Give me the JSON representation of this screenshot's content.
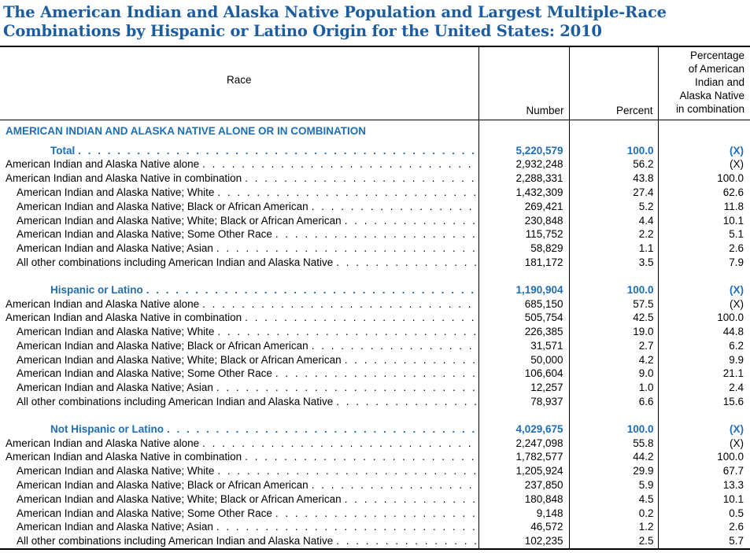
{
  "colors": {
    "title-blue": "#1C5C9F",
    "accent-blue": "#1F6EB3",
    "line-color": "#000000"
  },
  "title": {
    "line1": "The American Indian and Alaska Native Population and Largest Multiple-Race",
    "line2": "Combinations by Hispanic or Latino Origin for the United States: 2010"
  },
  "table": {
    "header": {
      "race": "Race",
      "number": "Number",
      "percent": "Percent",
      "combo_lines": [
        "Percentage",
        "of American",
        "Indian and",
        "Alaska Native",
        "in combination"
      ]
    },
    "group_header": "AMERICAN INDIAN AND ALASKA NATIVE ALONE OR IN COMBINATION",
    "sections": [
      {
        "label": "Total",
        "number": "5,220,579",
        "percent": "100.0",
        "combo": "(X)",
        "rows": [
          {
            "label": "American Indian and Alaska Native alone",
            "number": "2,932,248",
            "percent": "56.2",
            "combo": "(X)"
          },
          {
            "label": "American Indian and Alaska Native in combination",
            "number": "2,288,331",
            "percent": "43.8",
            "combo": "100.0"
          },
          {
            "label": "American Indian and Alaska Native; White",
            "number": "1,432,309",
            "percent": "27.4",
            "combo": "62.6"
          },
          {
            "label": "American Indian and Alaska Native; Black or African American",
            "number": "269,421",
            "percent": "5.2",
            "combo": "11.8"
          },
          {
            "label": "American Indian and Alaska Native; White; Black or African American",
            "number": "230,848",
            "percent": "4.4",
            "combo": "10.1"
          },
          {
            "label": "American Indian and Alaska Native; Some Other Race",
            "number": "115,752",
            "percent": "2.2",
            "combo": "5.1"
          },
          {
            "label": "American Indian and Alaska Native; Asian",
            "number": "58,829",
            "percent": "1.1",
            "combo": "2.6"
          },
          {
            "label": "All other combinations including American Indian and Alaska Native",
            "number": "181,172",
            "percent": "3.5",
            "combo": "7.9"
          }
        ]
      },
      {
        "label": "Hispanic or Latino",
        "number": "1,190,904",
        "percent": "100.0",
        "combo": "(X)",
        "rows": [
          {
            "label": "American Indian and Alaska Native alone",
            "number": "685,150",
            "percent": "57.5",
            "combo": "(X)"
          },
          {
            "label": "American Indian and Alaska Native in combination",
            "number": "505,754",
            "percent": "42.5",
            "combo": "100.0"
          },
          {
            "label": "American Indian and Alaska Native; White",
            "number": "226,385",
            "percent": "19.0",
            "combo": "44.8"
          },
          {
            "label": "American Indian and Alaska Native; Black or African American",
            "number": "31,571",
            "percent": "2.7",
            "combo": "6.2"
          },
          {
            "label": "American Indian and Alaska Native; White; Black or African American",
            "number": "50,000",
            "percent": "4.2",
            "combo": "9.9"
          },
          {
            "label": "American Indian and Alaska Native; Some Other Race",
            "number": "106,604",
            "percent": "9.0",
            "combo": "21.1"
          },
          {
            "label": "American Indian and Alaska Native; Asian",
            "number": "12,257",
            "percent": "1.0",
            "combo": "2.4"
          },
          {
            "label": "All other combinations including American Indian and Alaska Native",
            "number": "78,937",
            "percent": "6.6",
            "combo": "15.6"
          }
        ]
      },
      {
        "label": "Not Hispanic or Latino",
        "number": "4,029,675",
        "percent": "100.0",
        "combo": "(X)",
        "rows": [
          {
            "label": "American Indian and Alaska Native alone",
            "number": "2,247,098",
            "percent": "55.8",
            "combo": "(X)"
          },
          {
            "label": "American Indian and Alaska Native in combination",
            "number": "1,782,577",
            "percent": "44.2",
            "combo": "100.0"
          },
          {
            "label": "American Indian and Alaska Native; White",
            "number": "1,205,924",
            "percent": "29.9",
            "combo": "67.7"
          },
          {
            "label": "American Indian and Alaska Native; Black or African American",
            "number": "237,850",
            "percent": "5.9",
            "combo": "13.3"
          },
          {
            "label": "American Indian and Alaska Native; White; Black or African American",
            "number": "180,848",
            "percent": "4.5",
            "combo": "10.1"
          },
          {
            "label": "American Indian and Alaska Native; Some Other Race",
            "number": "9,148",
            "percent": "0.2",
            "combo": "0.5"
          },
          {
            "label": "American Indian and Alaska Native; Asian",
            "number": "46,572",
            "percent": "1.2",
            "combo": "2.6"
          },
          {
            "label": "All other combinations including American Indian and Alaska Native",
            "number": "102,235",
            "percent": "2.5",
            "combo": "5.7"
          }
        ]
      }
    ]
  }
}
